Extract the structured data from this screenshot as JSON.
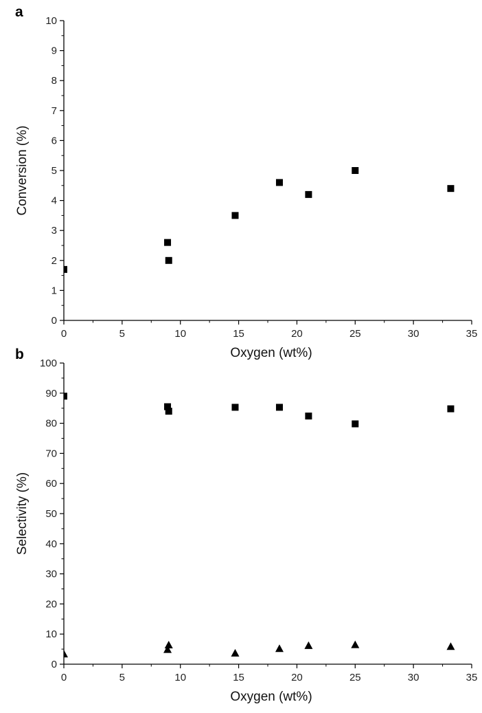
{
  "chart_data": [
    {
      "type": "scatter",
      "panel_label": "a",
      "xlabel": "Oxygen (wt%)",
      "ylabel": "Conversion (%)",
      "xlim": [
        0,
        35
      ],
      "ylim": [
        0,
        10
      ],
      "xticks": [
        0,
        5,
        10,
        15,
        20,
        25,
        30,
        35
      ],
      "yticks": [
        0,
        1,
        2,
        3,
        4,
        5,
        6,
        7,
        8,
        9,
        10
      ],
      "grid": false,
      "series": [
        {
          "marker": "square",
          "color": "#000000",
          "x": [
            0,
            8.9,
            9.0,
            14.7,
            18.5,
            21.0,
            25.0,
            33.2
          ],
          "y": [
            1.7,
            2.6,
            2.0,
            3.5,
            4.6,
            4.2,
            5.0,
            4.4
          ]
        }
      ]
    },
    {
      "type": "scatter",
      "panel_label": "b",
      "xlabel": "Oxygen (wt%)",
      "ylabel": "Selectivity (%)",
      "xlim": [
        0,
        35
      ],
      "ylim": [
        0,
        100
      ],
      "xticks": [
        0,
        5,
        10,
        15,
        20,
        25,
        30,
        35
      ],
      "yticks": [
        0,
        10,
        20,
        30,
        40,
        50,
        60,
        70,
        80,
        90,
        100
      ],
      "grid": false,
      "series": [
        {
          "marker": "square",
          "color": "#000000",
          "x": [
            0,
            8.9,
            9.0,
            14.7,
            18.5,
            21.0,
            25.0,
            33.2
          ],
          "y": [
            89,
            85.5,
            84,
            85.3,
            85.3,
            82.4,
            79.8,
            84.8
          ]
        },
        {
          "marker": "triangle",
          "color": "#000000",
          "x": [
            0,
            8.9,
            9.0,
            14.7,
            18.5,
            21.0,
            25.0,
            33.2
          ],
          "y": [
            3.5,
            5.0,
            6.5,
            3.8,
            5.3,
            6.3,
            6.6,
            6.0
          ]
        }
      ]
    }
  ]
}
